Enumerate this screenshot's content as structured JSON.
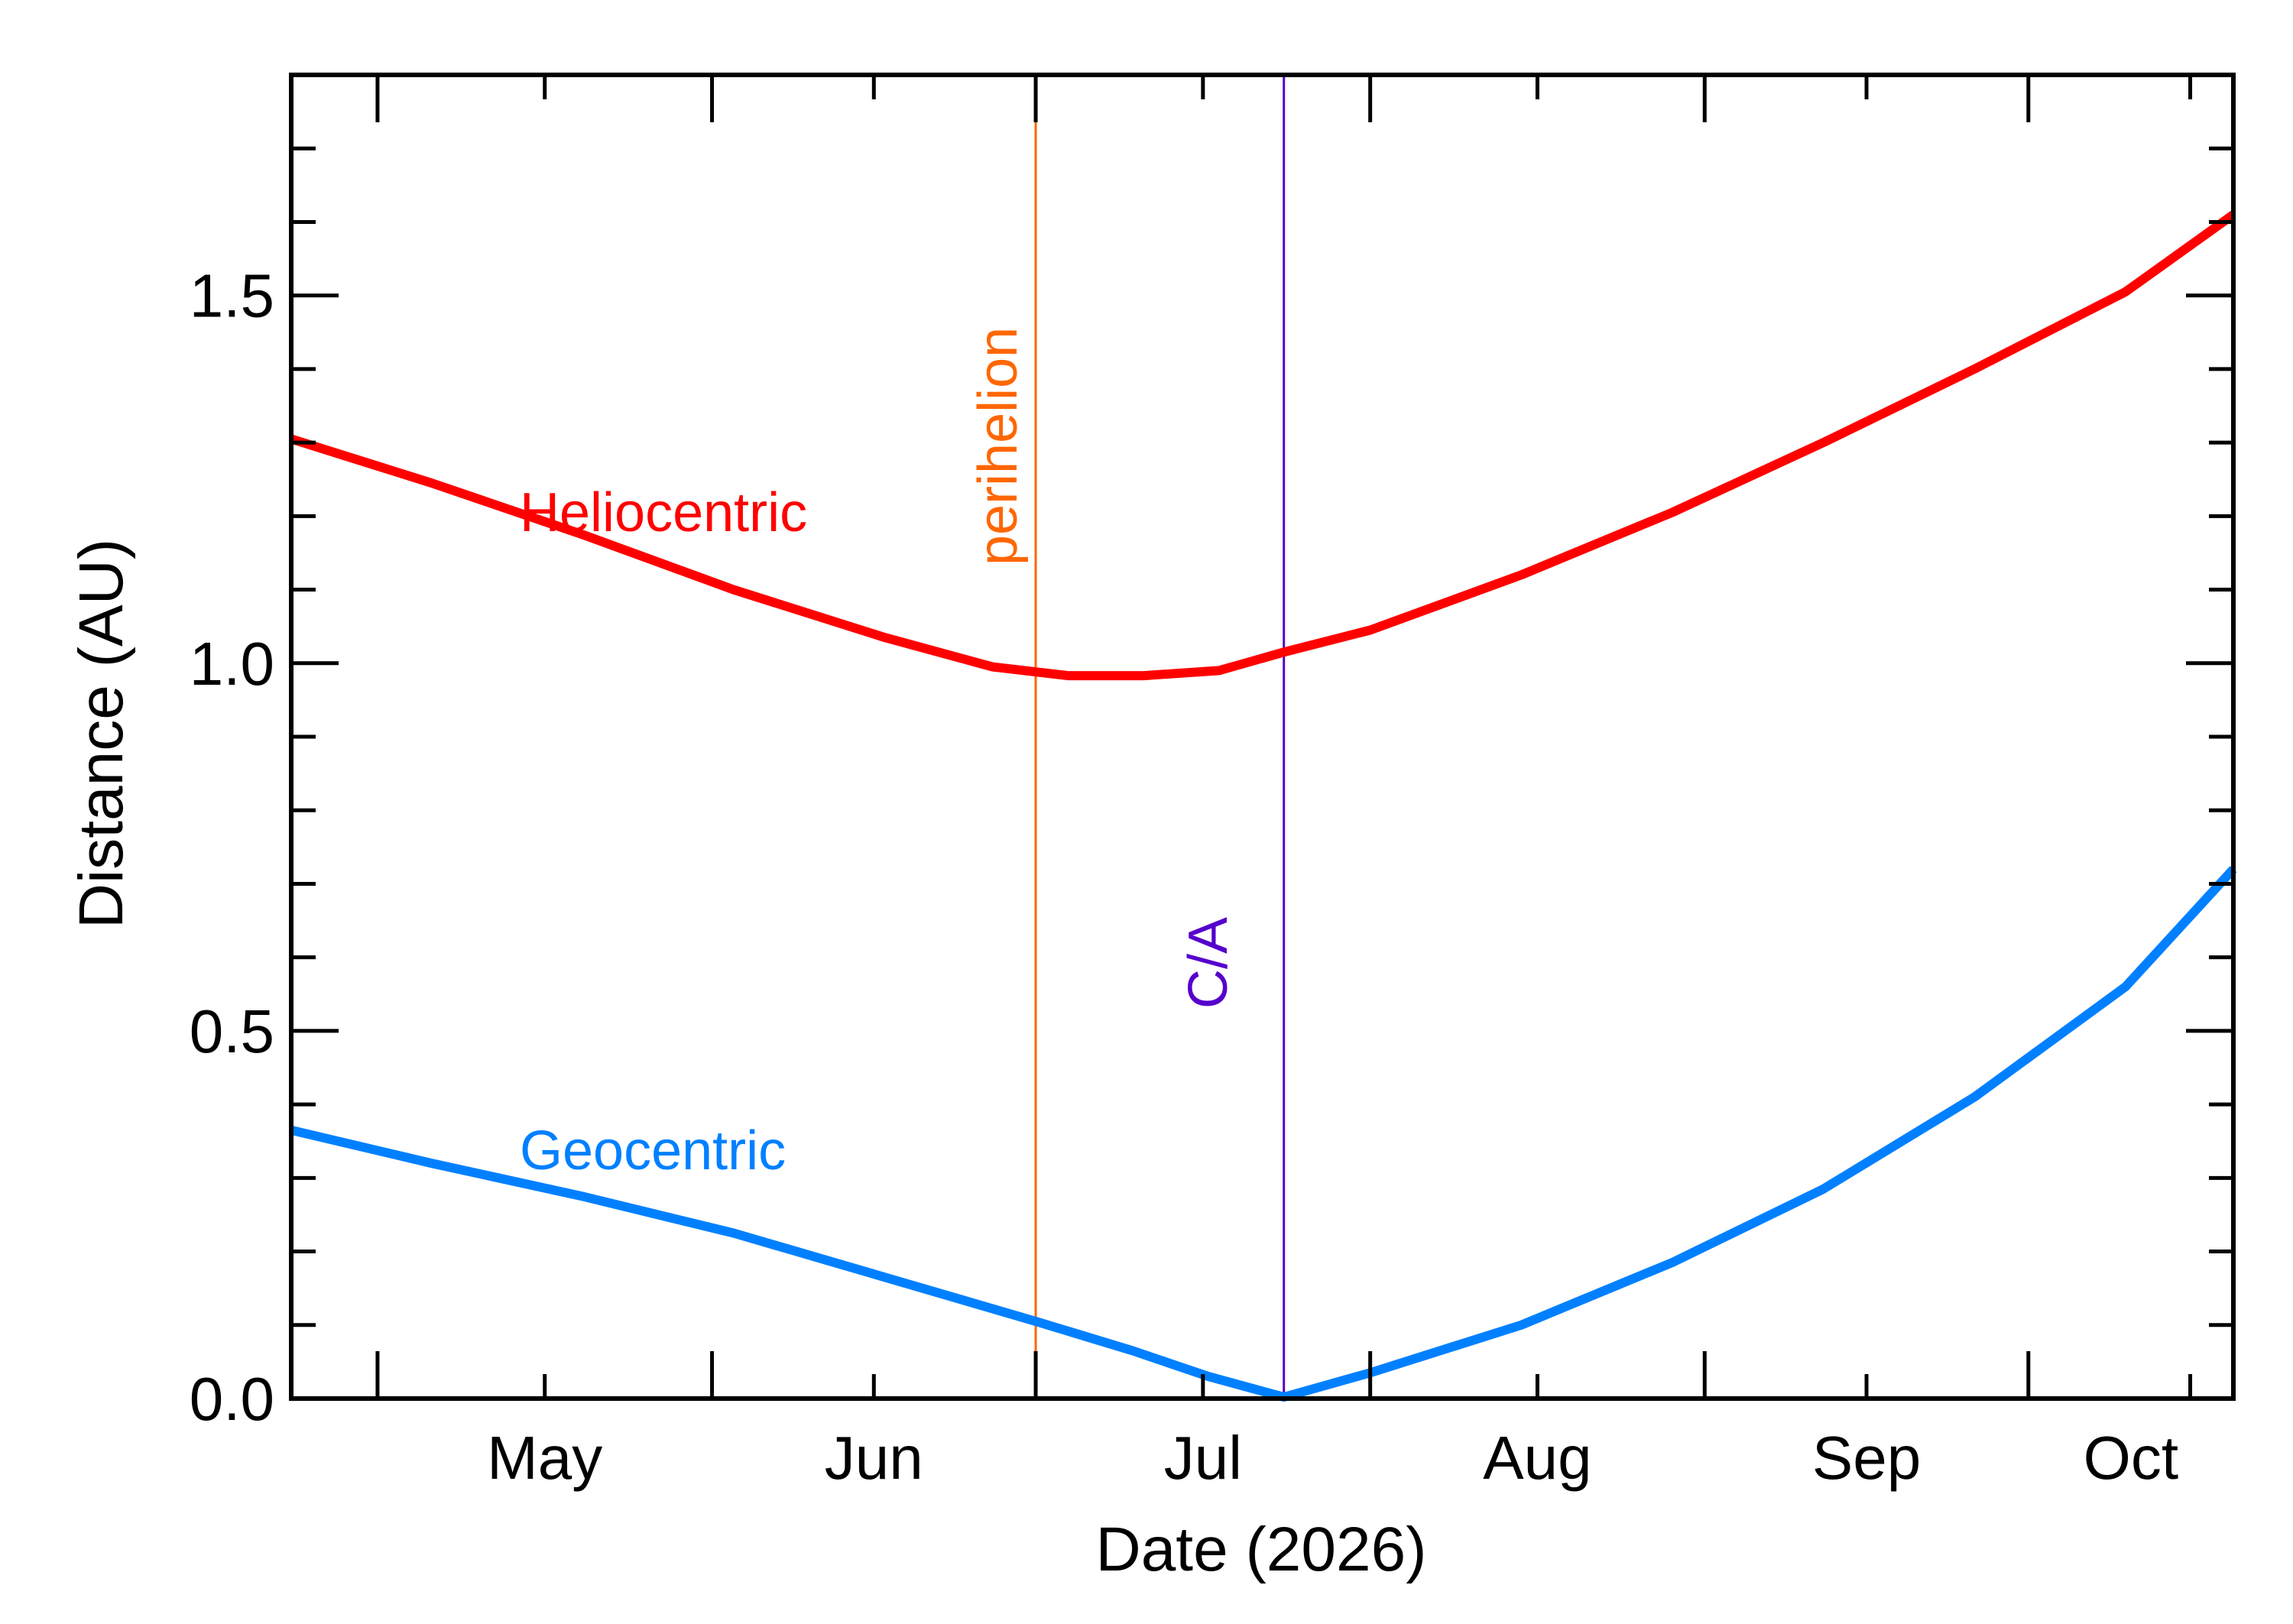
{
  "chart_data": {
    "type": "line",
    "xlabel": "Date (2026)",
    "ylabel": "Distance (AU)",
    "x_axis": {
      "type": "date",
      "range": [
        "2026-04-23",
        "2026-10-20"
      ],
      "month_ticks": [
        "2026-05-01",
        "2026-06-01",
        "2026-07-01",
        "2026-08-01",
        "2026-09-01",
        "2026-10-01"
      ],
      "tick_labels": [
        "May",
        "Jun",
        "Jul",
        "Aug",
        "Sep",
        "Oct"
      ]
    },
    "y_axis": {
      "range": [
        0,
        1.8
      ],
      "major_ticks": [
        0.0,
        0.5,
        1.0,
        1.5
      ],
      "tick_labels": [
        "0.0",
        "0.5",
        "1.0",
        "1.5"
      ],
      "minor_step": 0.1
    },
    "grid": false,
    "series": [
      {
        "name": "Heliocentric",
        "color": "#ff0000",
        "x": [
          "2026-04-23",
          "2026-05-06",
          "2026-05-20",
          "2026-06-03",
          "2026-06-17",
          "2026-06-27",
          "2026-07-04",
          "2026-07-11",
          "2026-07-18",
          "2026-07-24",
          "2026-08-01",
          "2026-08-15",
          "2026-08-29",
          "2026-09-12",
          "2026-09-26",
          "2026-10-10",
          "2026-10-20"
        ],
        "y": [
          1.305,
          1.245,
          1.175,
          1.1,
          1.035,
          0.995,
          0.983,
          0.983,
          0.99,
          1.015,
          1.045,
          1.12,
          1.205,
          1.3,
          1.4,
          1.505,
          1.61
        ]
      },
      {
        "name": "Geocentric",
        "color": "#0080ff",
        "x": [
          "2026-04-23",
          "2026-05-06",
          "2026-05-20",
          "2026-06-03",
          "2026-06-17",
          "2026-07-01",
          "2026-07-10",
          "2026-07-17",
          "2026-07-24",
          "2026-08-01",
          "2026-08-15",
          "2026-08-29",
          "2026-09-12",
          "2026-09-26",
          "2026-10-10",
          "2026-10-20"
        ],
        "y": [
          0.365,
          0.32,
          0.275,
          0.225,
          0.165,
          0.105,
          0.065,
          0.03,
          0.002,
          0.035,
          0.1,
          0.185,
          0.285,
          0.41,
          0.56,
          0.72
        ]
      }
    ],
    "annotations": [
      {
        "label": "perihelion",
        "date": "2026-07-01",
        "color": "#ff6600"
      },
      {
        "label": "C/A",
        "date": "2026-07-24",
        "color": "#5500cc"
      }
    ]
  }
}
